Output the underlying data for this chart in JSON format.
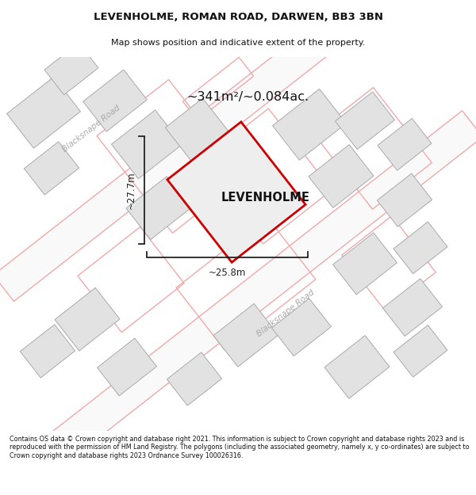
{
  "title_line1": "LEVENHOLME, ROMAN ROAD, DARWEN, BB3 3BN",
  "title_line2": "Map shows position and indicative extent of the property.",
  "area_text": "~341m²/~0.084ac.",
  "property_label": "LEVENHOLME",
  "dim_height": "~27.7m",
  "dim_width": "~25.8m",
  "road_label1": "Blacksnape Road",
  "road_label2": "Blacksnape Road",
  "footer_text": "Contains OS data © Crown copyright and database right 2021. This information is subject to Crown copyright and database rights 2023 and is reproduced with the permission of HM Land Registry. The polygons (including the associated geometry, namely x, y co-ordinates) are subject to Crown copyright and database rights 2023 Ordnance Survey 100026316.",
  "bg_color": "#ffffff",
  "map_bg": "#f7f7f7",
  "building_fill": "#e2e2e2",
  "building_edge": "#aaaaaa",
  "pink_color": "#f0aaaa",
  "red_plot_color": "#cc0000",
  "plot_fill": "#eeeeee",
  "dim_color": "#222222",
  "title_color": "#111111",
  "road_text_color": "#aaaaaa"
}
